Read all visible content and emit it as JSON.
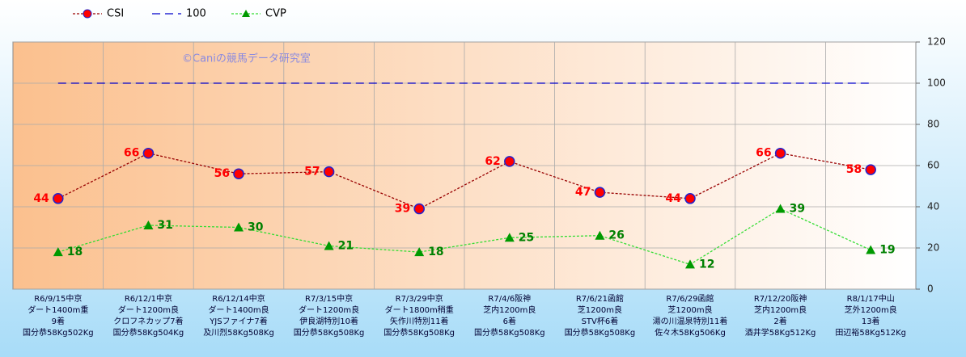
{
  "chart_data": {
    "type": "line",
    "categories": [
      [
        "R6/9/15中京",
        "ダート1400m重",
        "9着",
        "国分恭58Kg502Kg"
      ],
      [
        "R6/12/1中京",
        "ダート1200m良",
        "クロフネカップ7着",
        "国分恭58Kg504Kg"
      ],
      [
        "R6/12/14中京",
        "ダート1400m良",
        "YJSファイナ7着",
        "及川烈58Kg508Kg"
      ],
      [
        "R7/3/15中京",
        "ダート1200m良",
        "伊良湖特別10着",
        "国分恭58Kg508Kg"
      ],
      [
        "R7/3/29中京",
        "ダート1800m稍重",
        "矢作川特別11着",
        "国分恭58Kg508Kg"
      ],
      [
        "R7/4/6阪神",
        "芝内1200m良",
        "6着",
        "国分恭58Kg508Kg"
      ],
      [
        "R7/6/21函館",
        "芝1200m良",
        "STV杯6着",
        "国分恭58Kg508Kg"
      ],
      [
        "R7/6/29函館",
        "芝1200m良",
        "湯の川温泉特別11着",
        "佐々木58Kg506Kg"
      ],
      [
        "R7/12/20阪神",
        "芝内1200m良",
        "2着",
        "酒井学58Kg512Kg"
      ],
      [
        "R8/1/17中山",
        "芝外1200m良",
        "13着",
        "田辺裕58Kg512Kg"
      ]
    ],
    "series": [
      {
        "name": "CSI",
        "color": "#990000",
        "marker": "circle",
        "marker_color": "#ff0000",
        "label_color": "#ff0000",
        "values": [
          44,
          66,
          56,
          57,
          39,
          62,
          47,
          44,
          66,
          58
        ]
      },
      {
        "name": "100",
        "color": "#0000cc",
        "values": [
          100,
          100,
          100,
          100,
          100,
          100,
          100,
          100,
          100,
          100
        ]
      },
      {
        "name": "CVP",
        "color": "#33dd33",
        "marker": "triangle",
        "marker_color": "#009900",
        "label_color": "#008000",
        "values": [
          18,
          31,
          30,
          21,
          18,
          25,
          26,
          12,
          39,
          19
        ]
      }
    ],
    "annotation": "©Caniの競馬データ研究室",
    "ylim": [
      0,
      120
    ],
    "yticks": [
      0,
      20,
      40,
      60,
      80,
      100,
      120
    ],
    "grid": true
  }
}
